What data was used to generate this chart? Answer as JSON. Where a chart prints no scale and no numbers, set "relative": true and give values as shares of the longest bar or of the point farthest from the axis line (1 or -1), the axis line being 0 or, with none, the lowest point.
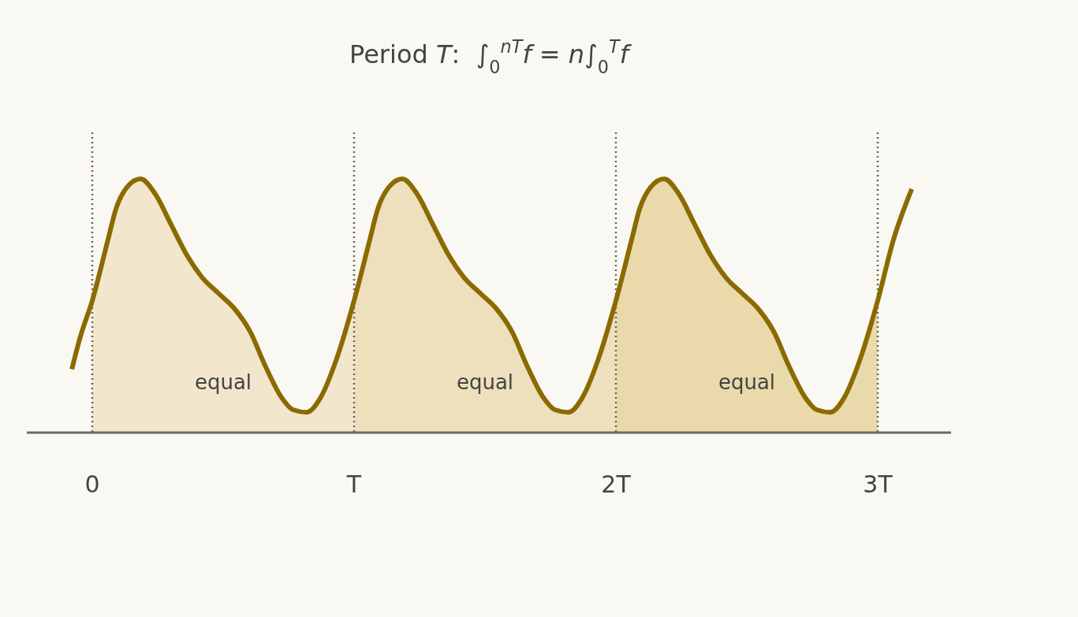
{
  "chart_data": {
    "type": "line",
    "title": "Period T:  ∫$_{0}$$^{nT}$f = n∫$_{0}$$^{T}$f",
    "relative": true,
    "tick_labels": "x",
    "xlim": [
      -0.25,
      3.28
    ],
    "xticks": [
      0,
      {
        "value": 1,
        "label": "T"
      },
      {
        "value": 2,
        "label": "2T"
      },
      {
        "value": 3,
        "label": "3T"
      }
    ],
    "series": [
      {
        "type": "area",
        "color": "#f2e6cc",
        "x": [
          0,
          0.06,
          0.09,
          0.135,
          0.184,
          0.241,
          0.301,
          0.361,
          0.421,
          0.481,
          0.542,
          0.602,
          0.662,
          0.722,
          0.767,
          0.819,
          0.873,
          0.933,
          1
        ],
        "values": [
          0.52,
          0.76,
          0.88,
          0.97,
          1.0,
          0.94,
          0.82,
          0.7,
          0.61,
          0.55,
          0.49,
          0.4,
          0.26,
          0.14,
          0.09,
          0.08,
          0.14,
          0.29,
          0.52
        ]
      },
      {
        "type": "area",
        "color": "#eee0bd",
        "x": [
          1,
          1.06,
          1.09,
          1.135,
          1.184,
          1.241,
          1.301,
          1.361,
          1.421,
          1.481,
          1.542,
          1.602,
          1.662,
          1.722,
          1.767,
          1.819,
          1.873,
          1.933,
          2
        ],
        "values": [
          0.52,
          0.76,
          0.88,
          0.97,
          1.0,
          0.94,
          0.82,
          0.7,
          0.61,
          0.55,
          0.49,
          0.4,
          0.26,
          0.14,
          0.09,
          0.08,
          0.14,
          0.29,
          0.52
        ]
      },
      {
        "type": "area",
        "color": "#e9d9ab",
        "x": [
          2,
          2.06,
          2.09,
          2.135,
          2.184,
          2.241,
          2.301,
          2.361,
          2.421,
          2.481,
          2.542,
          2.602,
          2.662,
          2.722,
          2.767,
          2.819,
          2.873,
          2.933,
          3
        ],
        "values": [
          0.52,
          0.76,
          0.88,
          0.97,
          1.0,
          0.94,
          0.82,
          0.7,
          0.61,
          0.55,
          0.49,
          0.4,
          0.26,
          0.14,
          0.09,
          0.08,
          0.14,
          0.29,
          0.52
        ]
      },
      {
        "color": "#8b6a00",
        "x": [
          -0.078,
          -0.045,
          0,
          0.06,
          0.09,
          0.135,
          0.184,
          0.241,
          0.301,
          0.361,
          0.421,
          0.481,
          0.542,
          0.602,
          0.662,
          0.722,
          0.767,
          0.819,
          0.873,
          0.933,
          1,
          1.06,
          1.09,
          1.135,
          1.184,
          1.241,
          1.301,
          1.361,
          1.421,
          1.481,
          1.542,
          1.602,
          1.662,
          1.722,
          1.767,
          1.819,
          1.873,
          1.933,
          2,
          2.06,
          2.09,
          2.135,
          2.184,
          2.241,
          2.301,
          2.361,
          2.421,
          2.481,
          2.542,
          2.602,
          2.662,
          2.722,
          2.767,
          2.819,
          2.873,
          2.933,
          3,
          3.06,
          3.13
        ],
        "values": [
          0.25,
          0.38,
          0.52,
          0.76,
          0.88,
          0.97,
          1.0,
          0.94,
          0.82,
          0.7,
          0.61,
          0.55,
          0.49,
          0.4,
          0.26,
          0.14,
          0.09,
          0.08,
          0.14,
          0.29,
          0.52,
          0.76,
          0.88,
          0.97,
          1.0,
          0.94,
          0.82,
          0.7,
          0.61,
          0.55,
          0.49,
          0.4,
          0.26,
          0.14,
          0.09,
          0.08,
          0.14,
          0.29,
          0.52,
          0.76,
          0.88,
          0.97,
          1.0,
          0.94,
          0.82,
          0.7,
          0.61,
          0.55,
          0.49,
          0.4,
          0.26,
          0.14,
          0.09,
          0.08,
          0.14,
          0.29,
          0.52,
          0.76,
          0.96
        ]
      }
    ],
    "ref_lines": [
      {
        "axis": "x",
        "value": 0,
        "color": "#6b6257",
        "line_style": "dotted"
      },
      {
        "axis": "x",
        "value": 1,
        "color": "#6b6257",
        "line_style": "dotted"
      },
      {
        "axis": "x",
        "value": 2,
        "color": "#6b6257",
        "line_style": "dotted"
      },
      {
        "axis": "x",
        "value": 3,
        "color": "#6b6257",
        "line_style": "dotted"
      }
    ],
    "annotations": [
      "equal",
      "equal",
      "equal"
    ]
  }
}
